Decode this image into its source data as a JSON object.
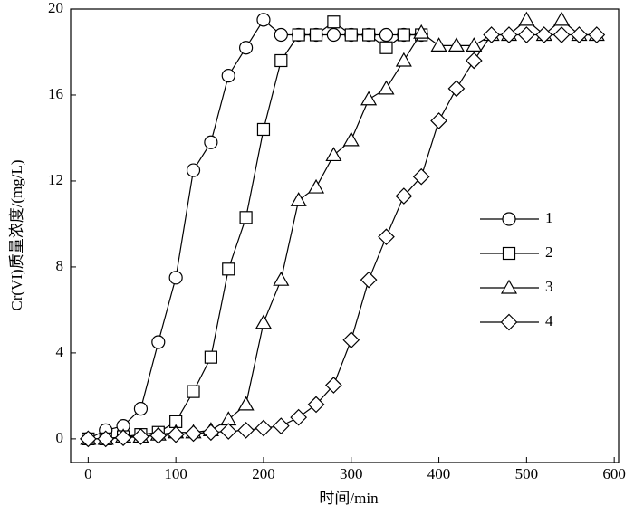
{
  "chart_data": {
    "type": "line",
    "xlabel": "时间/min",
    "ylabel": "Cr(VI)质量浓度/(mg/L)",
    "xlim": [
      -20,
      605
    ],
    "xticks": [
      0,
      100,
      200,
      300,
      400,
      500,
      600
    ],
    "ylim": [
      -1.1,
      20
    ],
    "yticks": [
      0,
      4,
      8,
      12,
      16,
      20
    ],
    "legend": "right",
    "series": [
      {
        "name": "1",
        "color": "#000000",
        "marker": "circle",
        "x": [
          0,
          20,
          40,
          60,
          80,
          100,
          120,
          140,
          160,
          180,
          200,
          220,
          240,
          260,
          280,
          300,
          320,
          340,
          360,
          380
        ],
        "values": [
          0,
          0.4,
          0.6,
          1.4,
          4.5,
          7.5,
          12.5,
          13.8,
          16.9,
          18.2,
          19.5,
          18.8,
          18.8,
          18.8,
          18.8,
          18.8,
          18.8,
          18.8,
          18.8,
          18.8
        ]
      },
      {
        "name": "2",
        "color": "#000000",
        "marker": "square",
        "x": [
          0,
          20,
          40,
          60,
          80,
          100,
          120,
          140,
          160,
          180,
          200,
          220,
          240,
          260,
          280,
          300,
          320,
          340,
          360,
          380
        ],
        "values": [
          0,
          0,
          0.1,
          0.2,
          0.3,
          0.8,
          2.2,
          3.8,
          7.9,
          10.3,
          14.4,
          17.6,
          18.8,
          18.8,
          19.4,
          18.8,
          18.8,
          18.2,
          18.8,
          18.8
        ]
      },
      {
        "name": "3",
        "color": "#000000",
        "marker": "triangle",
        "x": [
          0,
          20,
          40,
          60,
          80,
          100,
          120,
          140,
          160,
          180,
          200,
          220,
          240,
          260,
          280,
          300,
          320,
          340,
          360,
          380,
          400,
          420,
          440,
          460,
          480,
          500,
          520,
          540,
          560,
          580
        ],
        "values": [
          0,
          0,
          0.1,
          0.1,
          0.2,
          0.3,
          0.3,
          0.4,
          0.9,
          1.6,
          5.4,
          7.4,
          11.1,
          11.7,
          13.2,
          13.9,
          15.8,
          16.3,
          17.6,
          18.9,
          18.3,
          18.3,
          18.3,
          18.8,
          18.8,
          19.5,
          18.8,
          19.5,
          18.8,
          18.8
        ]
      },
      {
        "name": "4",
        "color": "#000000",
        "marker": "diamond",
        "x": [
          0,
          20,
          40,
          60,
          80,
          100,
          120,
          140,
          160,
          180,
          200,
          220,
          240,
          260,
          280,
          300,
          320,
          340,
          360,
          380,
          400,
          420,
          440,
          460,
          480,
          500,
          520,
          540,
          560,
          580
        ],
        "values": [
          0,
          0,
          0.05,
          0.1,
          0.15,
          0.2,
          0.25,
          0.3,
          0.35,
          0.4,
          0.5,
          0.6,
          1.0,
          1.6,
          2.5,
          4.6,
          7.4,
          9.4,
          11.3,
          12.2,
          14.8,
          16.3,
          17.6,
          18.8,
          18.8,
          18.8,
          18.8,
          18.8,
          18.8,
          18.8
        ]
      }
    ]
  }
}
